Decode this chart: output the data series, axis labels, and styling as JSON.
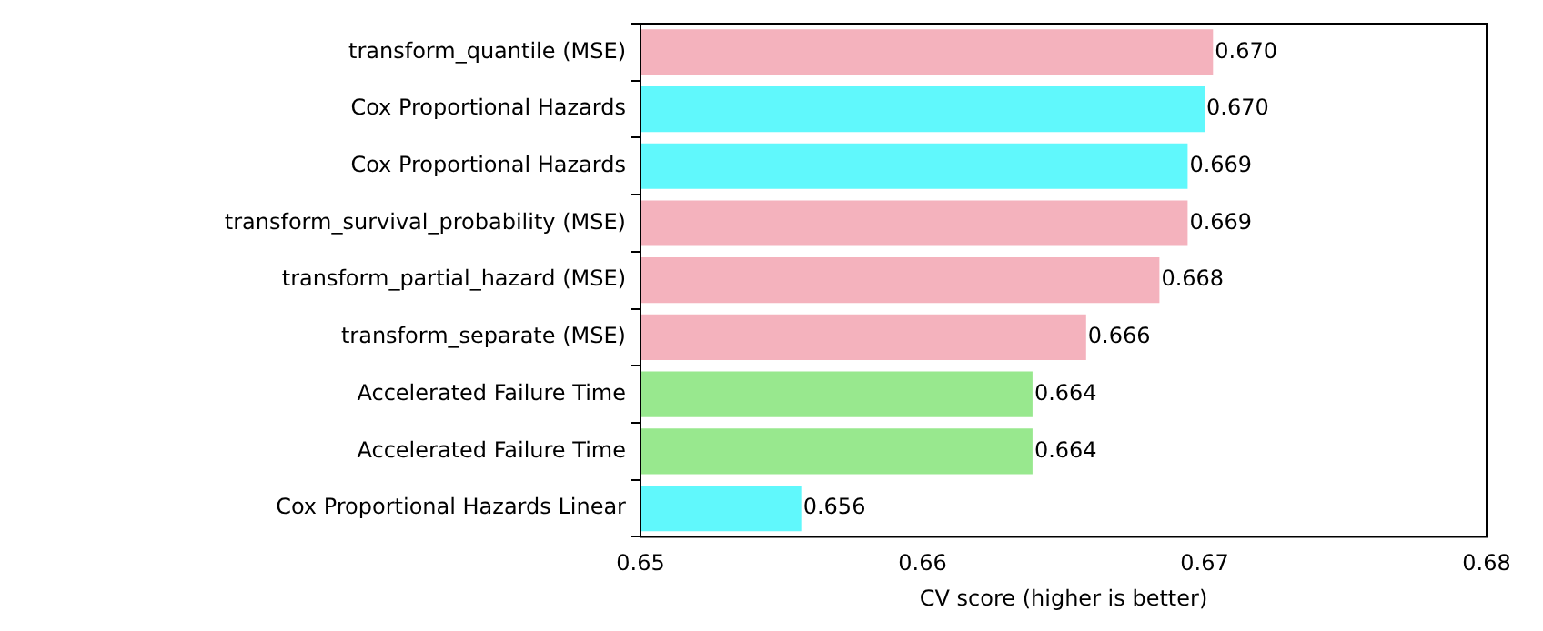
{
  "chart_data": {
    "type": "bar",
    "orientation": "horizontal",
    "xlabel": "CV score (higher is better)",
    "categories": [
      "transform_quantile (MSE)",
      "Cox Proportional Hazards",
      "Cox Proportional Hazards",
      "transform_survival_probability (MSE)",
      "transform_partial_hazard (MSE)",
      "transform_separate (MSE)",
      "Accelerated Failure Time",
      "Accelerated Failure Time",
      "Cox Proportional Hazards Linear"
    ],
    "values": [
      0.6703,
      0.67,
      0.6694,
      0.6694,
      0.6684,
      0.6658,
      0.6639,
      0.6639,
      0.6557
    ],
    "value_labels": [
      "0.670",
      "0.670",
      "0.669",
      "0.669",
      "0.668",
      "0.666",
      "0.664",
      "0.664",
      "0.656"
    ],
    "colors": [
      "#f4b2bd",
      "#60f8fc",
      "#60f8fc",
      "#f4b2bd",
      "#f4b2bd",
      "#f4b2bd",
      "#98e88e",
      "#98e88e",
      "#60f8fc"
    ],
    "xlim": [
      0.65,
      0.68
    ],
    "xticks": [
      0.65,
      0.66,
      0.67,
      0.68
    ],
    "grid": false,
    "legend": false
  }
}
